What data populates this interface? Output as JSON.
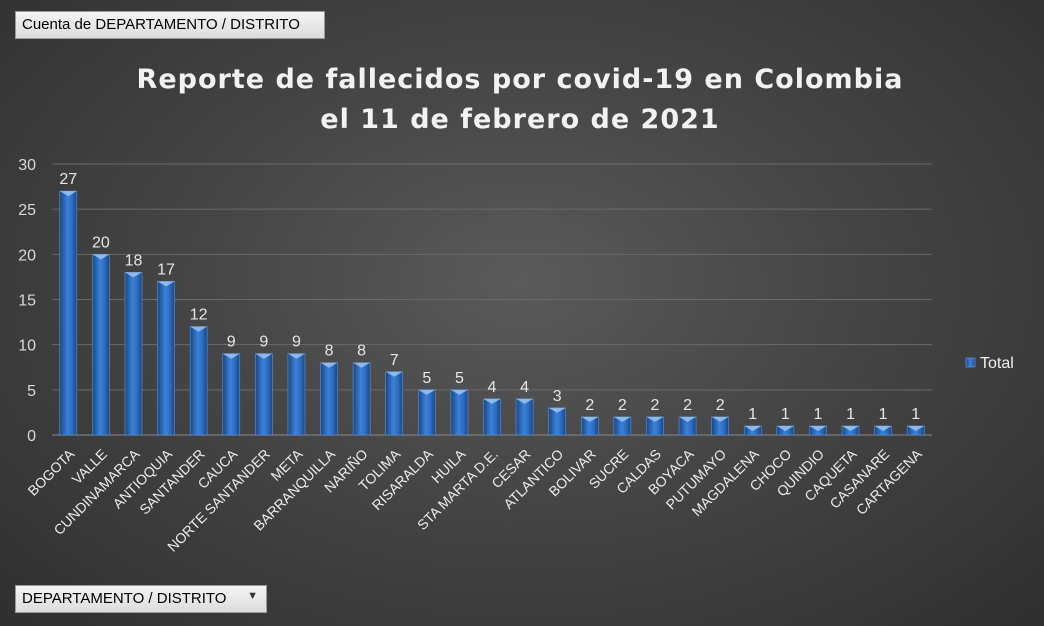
{
  "values_field_label": "Cuenta de DEPARTAMENTO / DISTRITO",
  "axis_field_label": "DEPARTAMENTO / DISTRITO",
  "colors": {
    "bar": "#2e6fc4",
    "bar_light": "#6fa6e8",
    "bar_dark": "#1a4684"
  },
  "chart_data": {
    "type": "bar",
    "title_lines": [
      "Reporte de fallecidos por covid-19 en Colombia",
      "el 11 de febrero de 2021"
    ],
    "categories": [
      "BOGOTA",
      "VALLE",
      "CUNDINAMARCA",
      "ANTIOQUIA",
      "SANTANDER",
      "CAUCA",
      "NORTE SANTANDER",
      "META",
      "BARRANQUILLA",
      "NARIÑO",
      "TOLIMA",
      "RISARALDA",
      "HUILA",
      "STA MARTA D.E.",
      "CESAR",
      "ATLANTICO",
      "BOLIVAR",
      "SUCRE",
      "CALDAS",
      "BOYACA",
      "PUTUMAYO",
      "MAGDALENA",
      "CHOCO",
      "QUINDIO",
      "CAQUETA",
      "CASANARE",
      "CARTAGENA"
    ],
    "series": [
      {
        "name": "Total",
        "values": [
          27,
          20,
          18,
          17,
          12,
          9,
          9,
          9,
          8,
          8,
          7,
          5,
          5,
          4,
          4,
          3,
          2,
          2,
          2,
          2,
          2,
          1,
          1,
          1,
          1,
          1,
          1
        ]
      }
    ],
    "ylim": [
      0,
      30
    ],
    "yticks": [
      0,
      5,
      10,
      15,
      20,
      25,
      30
    ],
    "grid": true,
    "legend_position": "right"
  }
}
